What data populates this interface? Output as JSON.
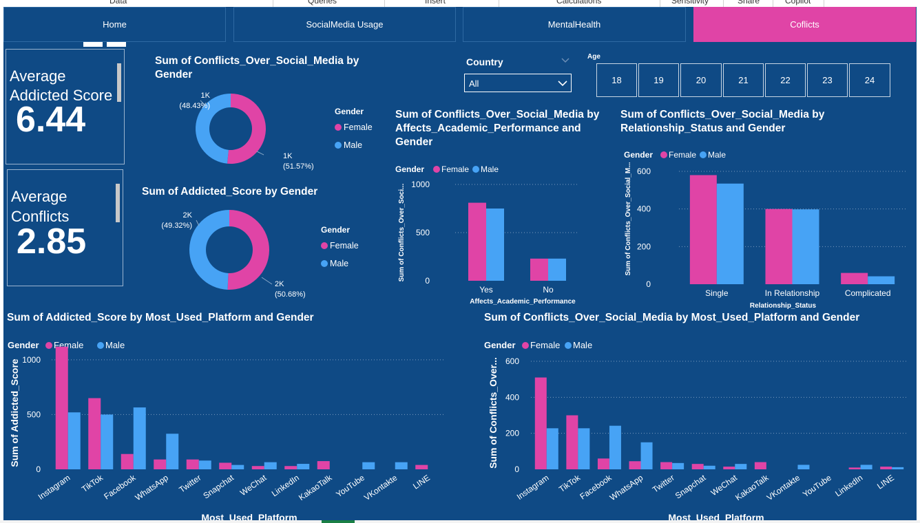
{
  "ribbon": {
    "items": [
      "Data",
      "Queries",
      "Insert",
      "Calculations",
      "Sensitivity",
      "Share",
      "Copilot"
    ]
  },
  "tabs": [
    {
      "label": "Home"
    },
    {
      "label": "SocialMedia Usage"
    },
    {
      "label": "MentalHealth"
    },
    {
      "label": "Coflicts"
    }
  ],
  "cards": {
    "addicted": {
      "label_line1": "Average",
      "label_line2": "Addicted Score",
      "value": "6.44"
    },
    "conflicts": {
      "label_line1": "Average",
      "label_line2": "Conflicts",
      "value": "2.85"
    }
  },
  "slicers": {
    "country": {
      "label": "Country",
      "value": "All"
    },
    "age": {
      "label": "Age",
      "options": [
        "18",
        "19",
        "20",
        "21",
        "22",
        "23",
        "24"
      ]
    }
  },
  "colors": {
    "female": "#e044a6",
    "male": "#47a3f5",
    "background": "#0f4a85",
    "active_tab": "#e044a6"
  },
  "chart_data": [
    {
      "id": "donut_conflicts",
      "type": "pie",
      "title": "Sum of Conflicts_Over_Social_Media by Gender",
      "legend_title": "Gender",
      "categories": [
        "Female",
        "Male"
      ],
      "values": [
        51.57,
        48.43
      ],
      "labels": [
        {
          "value": "1K",
          "pct": "(51.57%)"
        },
        {
          "value": "1K",
          "pct": "(48.43%)"
        }
      ]
    },
    {
      "id": "donut_addicted",
      "type": "pie",
      "title": "Sum of Addicted_Score by Gender",
      "legend_title": "Gender",
      "categories": [
        "Female",
        "Male"
      ],
      "values": [
        50.68,
        49.32
      ],
      "labels": [
        {
          "value": "2K",
          "pct": "(50.68%)"
        },
        {
          "value": "2K",
          "pct": "(49.32%)"
        }
      ]
    },
    {
      "id": "bar_academic",
      "type": "bar",
      "title": "Sum of Conflicts_Over_Social_Media by Affects_Academic_Performance and Gender",
      "legend_title": "Gender",
      "xlabel": "Affects_Academic_Performance",
      "ylabel": "Sum of Conflicts_Over_Soci...",
      "categories": [
        "Yes",
        "No"
      ],
      "series": [
        {
          "name": "Female",
          "values": [
            810,
            230
          ]
        },
        {
          "name": "Male",
          "values": [
            750,
            230
          ]
        }
      ],
      "ylim": [
        0,
        1000
      ],
      "yticks": [
        0,
        500,
        1000
      ]
    },
    {
      "id": "bar_relationship",
      "type": "bar",
      "title": "Sum of Conflicts_Over_Social_Media by Relationship_Status and Gender",
      "legend_title": "Gender",
      "xlabel": "Relationship_Status",
      "ylabel": "Sum of Conflicts_Over_Social_M...",
      "categories": [
        "Single",
        "In Relationship",
        "Complicated"
      ],
      "series": [
        {
          "name": "Female",
          "values": [
            580,
            400,
            60
          ]
        },
        {
          "name": "Male",
          "values": [
            535,
            398,
            42
          ]
        }
      ],
      "ylim": [
        0,
        600
      ],
      "yticks": [
        0,
        200,
        400,
        600
      ]
    },
    {
      "id": "bar_platform_addicted",
      "type": "bar",
      "title": "Sum of Addicted_Score by Most_Used_Platform and Gender",
      "legend_title": "Gender",
      "xlabel": "Most_Used_Platform",
      "ylabel": "Sum of Addicted_Score",
      "categories": [
        "Instagram",
        "TikTok",
        "Facebook",
        "WhatsApp",
        "Twitter",
        "Snapchat",
        "WeChat",
        "LinkedIn",
        "KakaoTalk",
        "YouTube",
        "VKontakte",
        "LINE"
      ],
      "series": [
        {
          "name": "Female",
          "values": [
            1120,
            650,
            140,
            90,
            90,
            60,
            30,
            30,
            75,
            0,
            0,
            40
          ]
        },
        {
          "name": "Male",
          "values": [
            520,
            500,
            565,
            325,
            80,
            40,
            65,
            50,
            0,
            65,
            65,
            0
          ]
        }
      ],
      "ylim": [
        0,
        1200
      ],
      "yticks": [
        0,
        500,
        1000
      ]
    },
    {
      "id": "bar_platform_conflicts",
      "type": "bar",
      "title": "Sum of Conflicts_Over_Social_Media by Most_Used_Platform and Gender",
      "legend_title": "Gender",
      "xlabel": "Most_Used_Platform",
      "ylabel": "Sum of Conflicts_Over...",
      "categories": [
        "Instagram",
        "TikTok",
        "Facebook",
        "WhatsApp",
        "Twitter",
        "Snapchat",
        "WeChat",
        "KakaoTalk",
        "VKontakte",
        "YouTube",
        "LinkedIn",
        "LINE"
      ],
      "series": [
        {
          "name": "Female",
          "values": [
            510,
            300,
            60,
            45,
            40,
            30,
            15,
            40,
            0,
            0,
            10,
            15
          ]
        },
        {
          "name": "Male",
          "values": [
            228,
            228,
            242,
            150,
            35,
            20,
            30,
            0,
            25,
            0,
            25,
            12
          ]
        }
      ],
      "ylim": [
        0,
        600
      ],
      "yticks": [
        0,
        200,
        400,
        600
      ]
    }
  ]
}
